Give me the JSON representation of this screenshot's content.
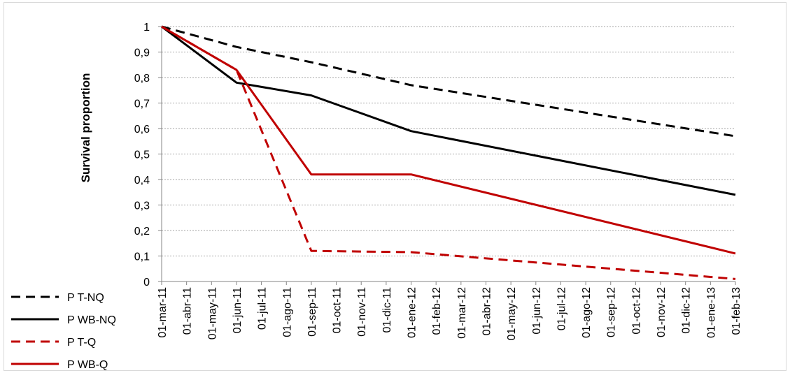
{
  "chart_data": {
    "type": "line",
    "title": "",
    "xlabel": "",
    "ylabel": "Survival proportion",
    "ylim": [
      0,
      1
    ],
    "yticks": [
      "0",
      "0,1",
      "0,2",
      "0,3",
      "0,4",
      "0,5",
      "0,6",
      "0,7",
      "0,8",
      "0,9",
      "1"
    ],
    "grid": "horizontal dashed",
    "legend_position": "bottom-left",
    "categories": [
      "01-mar-11",
      "01-abr-11",
      "01-may-11",
      "01-jun-11",
      "01-jul-11",
      "01-ago-11",
      "01-sep-11",
      "01-oct-11",
      "01-nov-11",
      "01-dic-11",
      "01-ene-12",
      "01-feb-12",
      "01-mar-12",
      "01-abr-12",
      "01-may-12",
      "01-jun-12",
      "01-jul-12",
      "01-ago-12",
      "01-sep-12",
      "01-oct-12",
      "01-nov-12",
      "01-dic-12",
      "01-ene-13",
      "01-feb-13"
    ],
    "series": [
      {
        "name": "P T-NQ",
        "color": "#000000",
        "dash": true,
        "points": [
          {
            "x": "01-mar-11",
            "y": 1.0
          },
          {
            "x": "01-jun-11",
            "y": 0.92
          },
          {
            "x": "01-sep-11",
            "y": 0.86
          },
          {
            "x": "01-ene-12",
            "y": 0.77
          },
          {
            "x": "01-feb-13",
            "y": 0.57
          }
        ]
      },
      {
        "name": "P WB-NQ",
        "color": "#000000",
        "dash": false,
        "points": [
          {
            "x": "01-mar-11",
            "y": 1.0
          },
          {
            "x": "01-jun-11",
            "y": 0.78
          },
          {
            "x": "01-sep-11",
            "y": 0.73
          },
          {
            "x": "01-ene-12",
            "y": 0.59
          },
          {
            "x": "01-feb-13",
            "y": 0.34
          }
        ]
      },
      {
        "name": "P T-Q",
        "color": "#c00000",
        "dash": true,
        "points": [
          {
            "x": "01-mar-11",
            "y": 1.0
          },
          {
            "x": "01-jun-11",
            "y": 0.83
          },
          {
            "x": "01-sep-11",
            "y": 0.12
          },
          {
            "x": "01-ene-12",
            "y": 0.115
          },
          {
            "x": "01-feb-13",
            "y": 0.01
          }
        ]
      },
      {
        "name": "P WB-Q",
        "color": "#c00000",
        "dash": false,
        "points": [
          {
            "x": "01-mar-11",
            "y": 1.0
          },
          {
            "x": "01-jun-11",
            "y": 0.83
          },
          {
            "x": "01-sep-11",
            "y": 0.42
          },
          {
            "x": "01-ene-12",
            "y": 0.42
          },
          {
            "x": "01-feb-13",
            "y": 0.11
          }
        ]
      }
    ]
  }
}
